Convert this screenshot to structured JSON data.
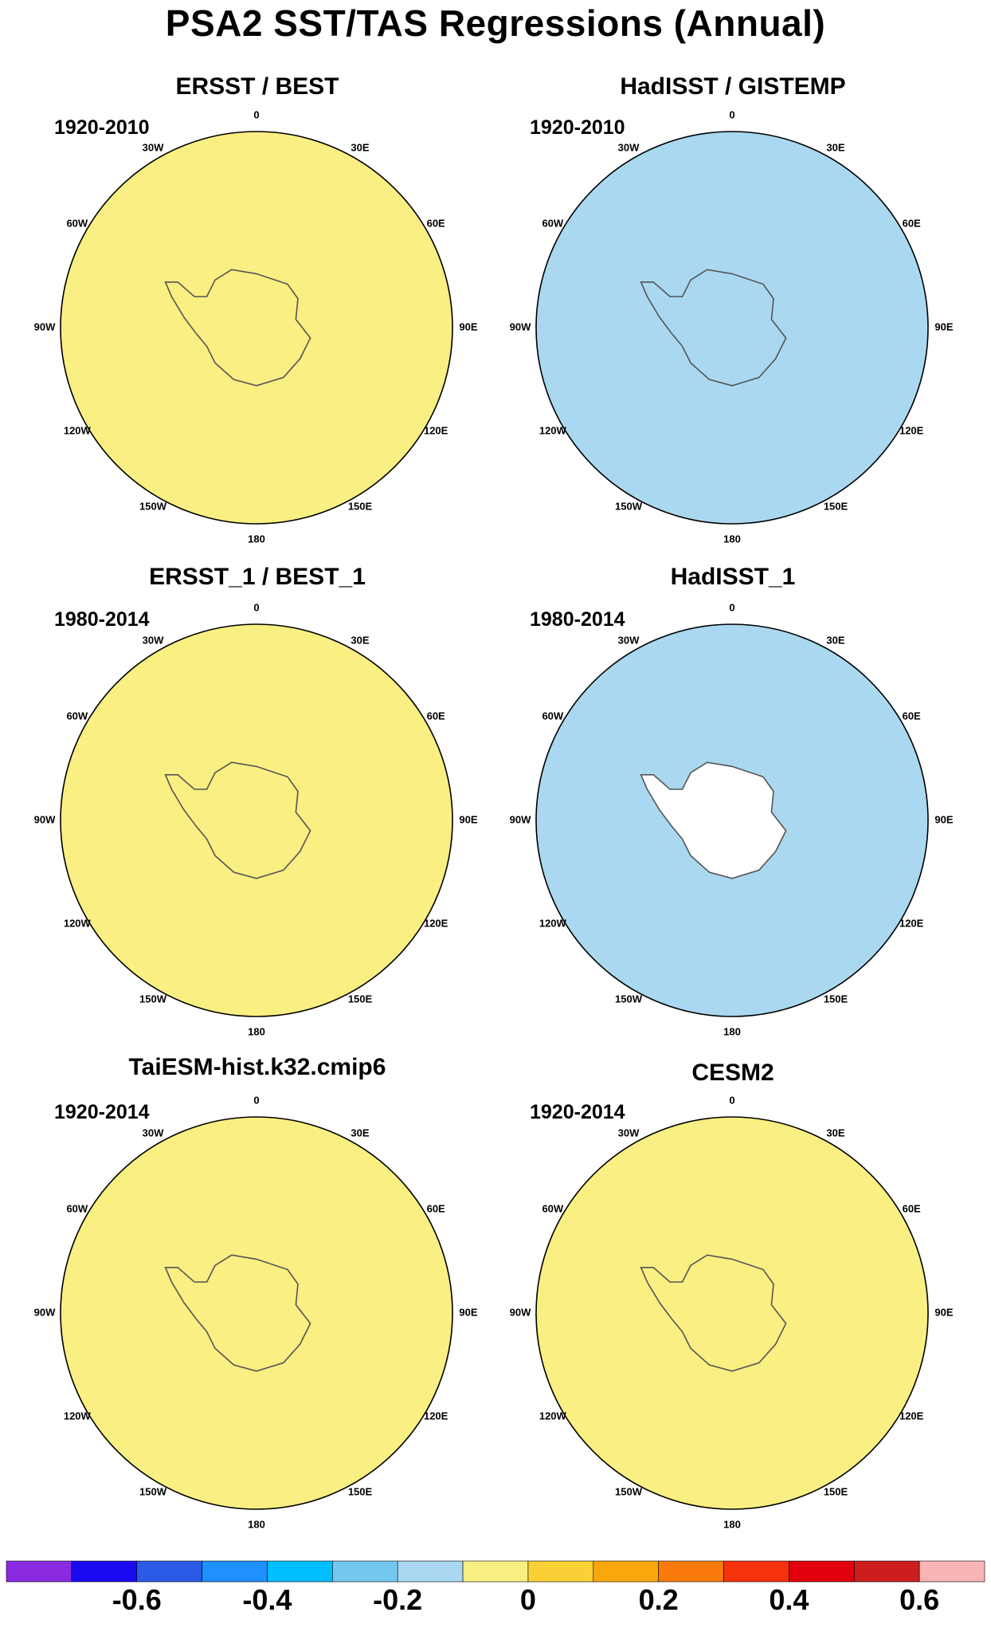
{
  "title": "PSA2 SST/TAS Regressions (Annual)",
  "panels": [
    {
      "title": "ERSST / BEST",
      "period": "1920-2010",
      "fill": "#f9ef82"
    },
    {
      "title": "HadISST / GISTEMP",
      "period": "1920-2010",
      "fill": "#a9d8f0"
    },
    {
      "title": "ERSST_1 / BEST_1",
      "period": "1980-2014",
      "fill": "#f9ef82"
    },
    {
      "title": "HadISST_1",
      "period": "1980-2014",
      "fill": "#a9d8f0"
    },
    {
      "title": "TaiESM-hist.k32.cmip6",
      "period": "1920-2014",
      "fill": "#f9ef82"
    },
    {
      "title": "CESM2",
      "period": "1920-2014",
      "fill": "#f9ef82"
    }
  ],
  "longitude_labels": [
    "0",
    "30E",
    "60E",
    "90E",
    "120E",
    "150E",
    "180",
    "150W",
    "120W",
    "90W",
    "60W",
    "30W"
  ],
  "colorbar": {
    "colors": [
      "#8a2be2",
      "#1a0af2",
      "#2a5ae6",
      "#1e90ff",
      "#00bfff",
      "#74c8f0",
      "#a9d8f0",
      "#f9ef82",
      "#f9d136",
      "#f9a70c",
      "#fa7a0c",
      "#f5320c",
      "#e2000c",
      "#cc1e1e",
      "#f9b5b5"
    ],
    "labels": [
      "-0.6",
      "-0.4",
      "-0.2",
      "0",
      "0.2",
      "0.4",
      "0.6"
    ]
  }
}
